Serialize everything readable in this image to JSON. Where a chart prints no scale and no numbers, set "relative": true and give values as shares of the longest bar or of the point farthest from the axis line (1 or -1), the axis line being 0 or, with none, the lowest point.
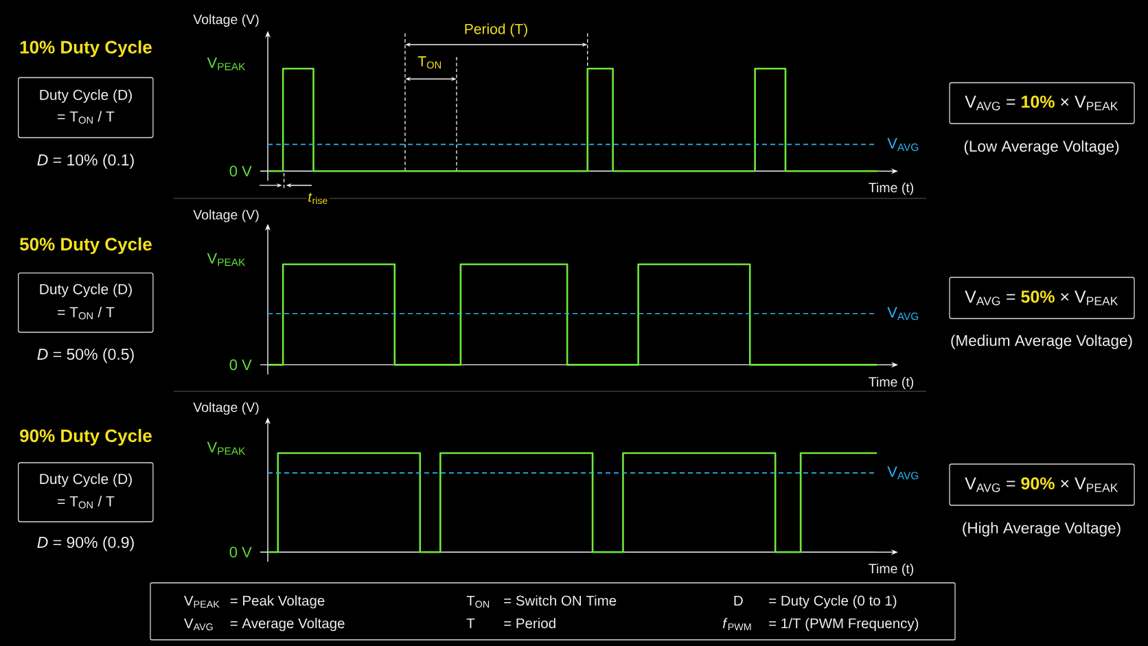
{
  "chart_data": [
    {
      "type": "step",
      "xlabel": "Time (t)",
      "ylabel": "Voltage (V)",
      "relative": true,
      "color": "#6ee83c",
      "categories": [
        null,
        null,
        null,
        null,
        null,
        null,
        null,
        null,
        null,
        null,
        null,
        null,
        null,
        null,
        null,
        null,
        null,
        null,
        null,
        null,
        null,
        null,
        null,
        null,
        null,
        null,
        null,
        null,
        null,
        null,
        null,
        null,
        null,
        null,
        null,
        null,
        null,
        null,
        null,
        null,
        null,
        null,
        null,
        null,
        null,
        null,
        null,
        null,
        null,
        null,
        null,
        null,
        null,
        null,
        null,
        null,
        null,
        null,
        null,
        null,
        null,
        null,
        null,
        null,
        null,
        null,
        null,
        null,
        null,
        null,
        null,
        null,
        null,
        null,
        null,
        null,
        null,
        null,
        null,
        null,
        null,
        null,
        null,
        null,
        null,
        null,
        null,
        null,
        null,
        null,
        null,
        null,
        null,
        null,
        null,
        null,
        null,
        null,
        null,
        null,
        null,
        null,
        null,
        null,
        null,
        null,
        null,
        null,
        null,
        null,
        null,
        null,
        null,
        null,
        null,
        null,
        null,
        null,
        null,
        null,
        null
      ],
      "values": [
        0,
        0,
        0,
        1,
        1,
        1,
        1,
        1,
        1,
        0,
        0,
        0,
        0,
        0,
        0,
        0,
        0,
        0,
        0,
        0,
        0,
        0,
        0,
        0,
        0,
        0,
        0,
        0,
        0,
        0,
        0,
        0,
        0,
        0,
        0,
        0,
        0,
        0,
        0,
        0,
        0,
        0,
        0,
        0,
        0,
        0,
        0,
        0,
        0,
        0,
        0,
        0,
        0,
        0,
        0,
        0,
        0,
        0,
        0,
        0,
        0,
        0,
        0,
        1,
        1,
        1,
        1,
        1,
        0,
        0,
        0,
        0,
        0,
        0,
        0,
        0,
        0,
        0,
        0,
        0,
        0,
        0,
        0,
        0,
        0,
        0,
        0,
        0,
        0,
        0,
        0,
        0,
        0,
        0,
        0,
        0,
        1,
        1,
        1,
        1,
        1,
        1,
        0,
        0,
        0,
        0,
        0,
        0,
        0,
        0,
        0,
        0,
        0,
        0,
        0,
        0,
        0,
        0,
        0,
        0,
        0
      ],
      "ref_lines": [
        {
          "axis": "y",
          "value": 0.26,
          "label": "V$_{AVG}$",
          "color": "#29b6f6",
          "line_style": "dashed"
        }
      ],
      "annotations": [
        "10% Duty Cycle",
        "Duty Cycle (D)",
        "= T$_{ON}$ / T",
        "*D* = 10% (0.1)",
        "V$_{AVG}$ = **10%** × V$_{PEAK}$",
        "(Low Average Voltage)",
        "V$_{PEAK}$",
        "0 V",
        "Period (T)",
        "T$_{ON}$",
        "*t*$_{rise}$"
      ]
    },
    {
      "type": "step",
      "xlabel": "Time (t)",
      "ylabel": "Voltage (V)",
      "relative": true,
      "color": "#6ee83c",
      "categories": [
        null,
        null,
        null,
        null,
        null,
        null,
        null,
        null,
        null,
        null,
        null,
        null,
        null,
        null,
        null,
        null,
        null,
        null,
        null,
        null,
        null,
        null,
        null,
        null,
        null,
        null,
        null,
        null,
        null,
        null,
        null,
        null,
        null,
        null,
        null,
        null,
        null,
        null,
        null,
        null,
        null,
        null,
        null,
        null,
        null,
        null,
        null,
        null,
        null,
        null,
        null,
        null,
        null,
        null,
        null,
        null,
        null,
        null,
        null,
        null,
        null,
        null,
        null,
        null,
        null,
        null,
        null,
        null,
        null,
        null,
        null,
        null,
        null,
        null,
        null,
        null,
        null,
        null,
        null,
        null,
        null,
        null,
        null,
        null,
        null,
        null,
        null,
        null,
        null,
        null,
        null,
        null,
        null,
        null,
        null,
        null,
        null,
        null,
        null,
        null,
        null,
        null,
        null,
        null,
        null,
        null,
        null,
        null,
        null,
        null,
        null,
        null,
        null,
        null,
        null,
        null,
        null,
        null,
        null,
        null,
        null
      ],
      "values": [
        0,
        0,
        0,
        1,
        1,
        1,
        1,
        1,
        1,
        1,
        1,
        1,
        1,
        1,
        1,
        1,
        1,
        1,
        1,
        1,
        1,
        1,
        1,
        1,
        1,
        0,
        0,
        0,
        0,
        0,
        0,
        0,
        0,
        0,
        0,
        0,
        0,
        0,
        1,
        1,
        1,
        1,
        1,
        1,
        1,
        1,
        1,
        1,
        1,
        1,
        1,
        1,
        1,
        1,
        1,
        1,
        1,
        1,
        1,
        0,
        0,
        0,
        0,
        0,
        0,
        0,
        0,
        0,
        0,
        0,
        0,
        0,
        0,
        1,
        1,
        1,
        1,
        1,
        1,
        1,
        1,
        1,
        1,
        1,
        1,
        1,
        1,
        1,
        1,
        1,
        1,
        1,
        1,
        1,
        1,
        0,
        0,
        0,
        0,
        0,
        0,
        0,
        0,
        0,
        0,
        0,
        0,
        0,
        0,
        0,
        0,
        0,
        0,
        0,
        0,
        0,
        0,
        0,
        0,
        0,
        0
      ],
      "ref_lines": [
        {
          "axis": "y",
          "value": 0.51,
          "label": "V$_{AVG}$",
          "color": "#29b6f6",
          "line_style": "dashed"
        }
      ],
      "annotations": [
        "50% Duty Cycle",
        "Duty Cycle (D)",
        "= T$_{ON}$ / T",
        "*D* = 50% (0.5)",
        "V$_{AVG}$ = **50%** × V$_{PEAK}$",
        "(Medium Average Voltage)",
        "V$_{PEAK}$",
        "0 V"
      ]
    },
    {
      "type": "step",
      "xlabel": "Time (t)",
      "ylabel": "Voltage (V)",
      "relative": true,
      "color": "#6ee83c",
      "categories": [
        null,
        null,
        null,
        null,
        null,
        null,
        null,
        null,
        null,
        null,
        null,
        null,
        null,
        null,
        null,
        null,
        null,
        null,
        null,
        null,
        null,
        null,
        null,
        null,
        null,
        null,
        null,
        null,
        null,
        null,
        null,
        null,
        null,
        null,
        null,
        null,
        null,
        null,
        null,
        null,
        null,
        null,
        null,
        null,
        null,
        null,
        null,
        null,
        null,
        null,
        null,
        null,
        null,
        null,
        null,
        null,
        null,
        null,
        null,
        null,
        null,
        null,
        null,
        null,
        null,
        null,
        null,
        null,
        null,
        null,
        null,
        null,
        null,
        null,
        null,
        null,
        null,
        null,
        null,
        null,
        null,
        null,
        null,
        null,
        null,
        null,
        null,
        null,
        null,
        null,
        null,
        null,
        null,
        null,
        null,
        null,
        null,
        null,
        null,
        null,
        null,
        null,
        null,
        null,
        null,
        null,
        null,
        null,
        null,
        null,
        null,
        null,
        null,
        null,
        null,
        null,
        null,
        null,
        null,
        null,
        null
      ],
      "values": [
        0,
        0,
        1,
        1,
        1,
        1,
        1,
        1,
        1,
        1,
        1,
        1,
        1,
        1,
        1,
        1,
        1,
        1,
        1,
        1,
        1,
        1,
        1,
        1,
        1,
        1,
        1,
        1,
        1,
        1,
        0,
        0,
        0,
        0,
        1,
        1,
        1,
        1,
        1,
        1,
        1,
        1,
        1,
        1,
        1,
        1,
        1,
        1,
        1,
        1,
        1,
        1,
        1,
        1,
        1,
        1,
        1,
        1,
        1,
        1,
        1,
        1,
        1,
        1,
        0,
        0,
        0,
        0,
        0,
        0,
        1,
        1,
        1,
        1,
        1,
        1,
        1,
        1,
        1,
        1,
        1,
        1,
        1,
        1,
        1,
        1,
        1,
        1,
        1,
        1,
        1,
        1,
        1,
        1,
        1,
        1,
        1,
        1,
        1,
        1,
        0,
        0,
        0,
        0,
        0,
        1,
        1,
        1,
        1,
        1,
        1,
        1,
        1,
        1,
        1,
        1,
        1,
        1,
        1,
        1,
        1
      ],
      "ref_lines": [
        {
          "axis": "y",
          "value": 0.8,
          "label": "V$_{AVG}$",
          "color": "#29b6f6",
          "line_style": "dashed"
        }
      ],
      "annotations": [
        "90% Duty Cycle",
        "Duty Cycle (D)",
        "= T$_{ON}$ / T",
        "*D* = 90% (0.9)",
        "V$_{AVG}$ = **90%** × V$_{PEAK}$",
        "(High Average Voltage)",
        "V$_{PEAK}$",
        "0 V"
      ]
    },
    {
      "type": "other",
      "annotations": [
        "V$_{PEAK}$",
        "= Peak Voltage",
        "T$_{ON}$",
        "= Switch ON Time",
        "D",
        "= Duty Cycle (0 to 1)",
        "V$_{AVG}$",
        "= Average Voltage",
        "T",
        "= Period",
        "*f*$_{PWM}$",
        "= 1/T (PWM Frequency)"
      ]
    }
  ]
}
